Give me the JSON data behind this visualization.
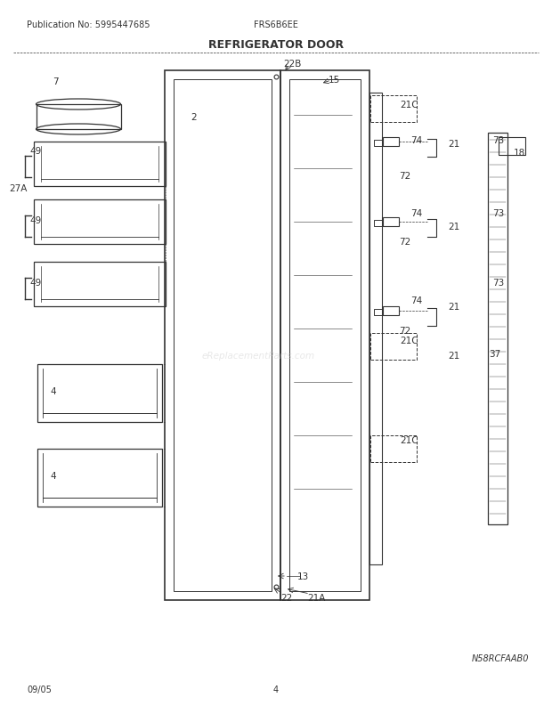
{
  "pub_no": "Publication No: 5995447685",
  "model": "FRS6B6EE",
  "title": "REFRIGERATOR DOOR",
  "date": "09/05",
  "page": "4",
  "diagram_id": "N58RCFAAB0",
  "bg_color": "#ffffff",
  "line_color": "#333333",
  "text_color": "#333333",
  "title_fontsize": 9,
  "label_fontsize": 7.5,
  "small_fontsize": 7
}
